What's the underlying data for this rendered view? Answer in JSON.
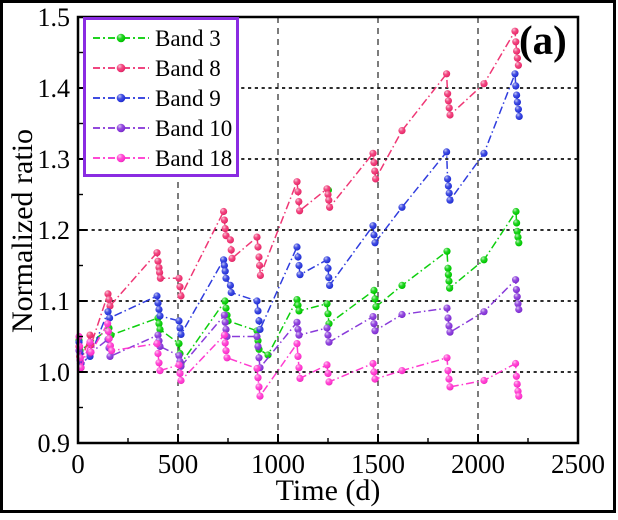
{
  "figure": {
    "panel_label": "(a)",
    "frame_color": "#000000",
    "legend_border_color": "#8A2BE2",
    "x_axis": {
      "label": "Time (d)",
      "ticks": [
        0,
        500,
        1000,
        1500,
        2000,
        2500
      ],
      "minor_ticks": [
        250,
        750,
        1250,
        1750,
        2250
      ]
    },
    "y_axis": {
      "label": "Normalized ratio",
      "ticks": [
        0.9,
        1.0,
        1.1,
        1.2,
        1.3,
        1.4,
        1.5
      ],
      "minor_ticks": [
        0.95,
        1.05,
        1.15,
        1.25,
        1.35,
        1.45
      ]
    },
    "gridlines": {
      "horizontal": [
        1.0,
        1.1,
        1.2,
        1.3,
        1.4
      ],
      "vertical": [
        500,
        1000,
        1500,
        2000
      ]
    }
  },
  "chart_data": {
    "type": "scatter",
    "title": "",
    "xlabel": "Time (d)",
    "ylabel": "Normalized ratio",
    "xlim": [
      0,
      2500
    ],
    "ylim": [
      0.9,
      1.5
    ],
    "grid": "dashed-black-at-major-lines",
    "legend_position": "upper-left",
    "series": [
      {
        "name": "Band 3",
        "color": "#00CC00",
        "points": [
          [
            5,
            1.045
          ],
          [
            10,
            1.03
          ],
          [
            60,
            1.04
          ],
          [
            155,
            1.062
          ],
          [
            165,
            1.052
          ],
          [
            400,
            1.076
          ],
          [
            405,
            1.068
          ],
          [
            410,
            1.06
          ],
          [
            505,
            1.04
          ],
          [
            510,
            1.026
          ],
          [
            515,
            1.012
          ],
          [
            735,
            1.1
          ],
          [
            740,
            1.09
          ],
          [
            745,
            1.08
          ],
          [
            750,
            1.072
          ],
          [
            895,
            1.058
          ],
          [
            900,
            1.044
          ],
          [
            905,
            1.032
          ],
          [
            950,
            1.024
          ],
          [
            1095,
            1.102
          ],
          [
            1100,
            1.094
          ],
          [
            1105,
            1.086
          ],
          [
            1245,
            1.096
          ],
          [
            1250,
            1.082
          ],
          [
            1255,
            1.068
          ],
          [
            1480,
            1.115
          ],
          [
            1485,
            1.103
          ],
          [
            1490,
            1.092
          ],
          [
            1620,
            1.122
          ],
          [
            1845,
            1.17
          ],
          [
            1850,
            1.146
          ],
          [
            1852,
            1.137
          ],
          [
            1855,
            1.128
          ],
          [
            1858,
            1.118
          ],
          [
            2030,
            1.158
          ],
          [
            2190,
            1.226
          ],
          [
            2193,
            1.21
          ],
          [
            2196,
            1.198
          ],
          [
            2200,
            1.19
          ],
          [
            2204,
            1.182
          ]
        ],
        "outliers": [
          [
            1252,
            1.256
          ]
        ]
      },
      {
        "name": "Band 8",
        "color": "#EE2C6E",
        "points": [
          [
            5,
            1.036
          ],
          [
            8,
            1.022
          ],
          [
            12,
            1.012
          ],
          [
            60,
            1.052
          ],
          [
            65,
            1.038
          ],
          [
            150,
            1.11
          ],
          [
            155,
            1.102
          ],
          [
            160,
            1.093
          ],
          [
            395,
            1.168
          ],
          [
            400,
            1.156
          ],
          [
            405,
            1.147
          ],
          [
            408,
            1.14
          ],
          [
            412,
            1.132
          ],
          [
            505,
            1.132
          ],
          [
            510,
            1.12
          ],
          [
            515,
            1.107
          ],
          [
            728,
            1.226
          ],
          [
            732,
            1.214
          ],
          [
            736,
            1.202
          ],
          [
            740,
            1.192
          ],
          [
            762,
            1.186
          ],
          [
            766,
            1.172
          ],
          [
            770,
            1.16
          ],
          [
            895,
            1.19
          ],
          [
            900,
            1.176
          ],
          [
            905,
            1.162
          ],
          [
            908,
            1.15
          ],
          [
            912,
            1.136
          ],
          [
            1095,
            1.268
          ],
          [
            1100,
            1.254
          ],
          [
            1104,
            1.24
          ],
          [
            1108,
            1.227
          ],
          [
            1245,
            1.258
          ],
          [
            1250,
            1.25
          ],
          [
            1254,
            1.242
          ],
          [
            1258,
            1.232
          ],
          [
            1475,
            1.308
          ],
          [
            1480,
            1.295
          ],
          [
            1484,
            1.283
          ],
          [
            1488,
            1.272
          ],
          [
            1620,
            1.34
          ],
          [
            1843,
            1.42
          ],
          [
            1848,
            1.392
          ],
          [
            1852,
            1.382
          ],
          [
            1856,
            1.372
          ],
          [
            1860,
            1.362
          ],
          [
            2030,
            1.406
          ],
          [
            2185,
            1.48
          ],
          [
            2189,
            1.465
          ],
          [
            2193,
            1.452
          ],
          [
            2197,
            1.442
          ],
          [
            2202,
            1.432
          ]
        ],
        "outliers": []
      },
      {
        "name": "Band 9",
        "color": "#2533DC",
        "points": [
          [
            5,
            1.042
          ],
          [
            10,
            1.026
          ],
          [
            15,
            1.012
          ],
          [
            60,
            1.022
          ],
          [
            150,
            1.085
          ],
          [
            158,
            1.076
          ],
          [
            395,
            1.107
          ],
          [
            400,
            1.097
          ],
          [
            405,
            1.088
          ],
          [
            410,
            1.079
          ],
          [
            505,
            1.072
          ],
          [
            510,
            1.062
          ],
          [
            515,
            1.053
          ],
          [
            728,
            1.158
          ],
          [
            732,
            1.15
          ],
          [
            736,
            1.142
          ],
          [
            740,
            1.132
          ],
          [
            762,
            1.122
          ],
          [
            766,
            1.112
          ],
          [
            895,
            1.1
          ],
          [
            900,
            1.086
          ],
          [
            905,
            1.072
          ],
          [
            910,
            1.06
          ],
          [
            1095,
            1.176
          ],
          [
            1100,
            1.162
          ],
          [
            1105,
            1.15
          ],
          [
            1110,
            1.137
          ],
          [
            1245,
            1.158
          ],
          [
            1250,
            1.146
          ],
          [
            1254,
            1.133
          ],
          [
            1258,
            1.122
          ],
          [
            1475,
            1.206
          ],
          [
            1480,
            1.193
          ],
          [
            1485,
            1.182
          ],
          [
            1620,
            1.232
          ],
          [
            1843,
            1.31
          ],
          [
            1848,
            1.272
          ],
          [
            1852,
            1.262
          ],
          [
            1856,
            1.252
          ],
          [
            1860,
            1.242
          ],
          [
            2030,
            1.308
          ],
          [
            2185,
            1.42
          ],
          [
            2189,
            1.403
          ],
          [
            2193,
            1.39
          ],
          [
            2197,
            1.38
          ],
          [
            2202,
            1.37
          ],
          [
            2206,
            1.36
          ]
        ],
        "outliers": []
      },
      {
        "name": "Band 10",
        "color": "#8330D8",
        "points": [
          [
            5,
            1.03
          ],
          [
            10,
            1.017
          ],
          [
            15,
            1.006
          ],
          [
            60,
            1.026
          ],
          [
            150,
            1.046
          ],
          [
            155,
            1.034
          ],
          [
            160,
            1.022
          ],
          [
            400,
            1.052
          ],
          [
            405,
            1.044
          ],
          [
            410,
            1.036
          ],
          [
            505,
            1.023
          ],
          [
            510,
            1.015
          ],
          [
            515,
            1.008
          ],
          [
            732,
            1.08
          ],
          [
            736,
            1.07
          ],
          [
            740,
            1.06
          ],
          [
            745,
            1.05
          ],
          [
            895,
            1.05
          ],
          [
            900,
            1.036
          ],
          [
            905,
            1.02
          ],
          [
            910,
            1.006
          ],
          [
            1095,
            1.07
          ],
          [
            1100,
            1.06
          ],
          [
            1105,
            1.052
          ],
          [
            1245,
            1.062
          ],
          [
            1250,
            1.052
          ],
          [
            1255,
            1.042
          ],
          [
            1475,
            1.078
          ],
          [
            1480,
            1.068
          ],
          [
            1485,
            1.058
          ],
          [
            1620,
            1.081
          ],
          [
            1845,
            1.09
          ],
          [
            1850,
            1.076
          ],
          [
            1855,
            1.065
          ],
          [
            1860,
            1.056
          ],
          [
            2030,
            1.085
          ],
          [
            2188,
            1.13
          ],
          [
            2192,
            1.116
          ],
          [
            2196,
            1.106
          ],
          [
            2200,
            1.096
          ],
          [
            2204,
            1.088
          ]
        ],
        "outliers": []
      },
      {
        "name": "Band 18",
        "color": "#FF30CE",
        "points": [
          [
            5,
            1.05
          ],
          [
            8,
            1.036
          ],
          [
            12,
            1.02
          ],
          [
            15,
            1.006
          ],
          [
            60,
            1.042
          ],
          [
            65,
            1.028
          ],
          [
            148,
            1.068
          ],
          [
            152,
            1.057
          ],
          [
            156,
            1.047
          ],
          [
            162,
            1.037
          ],
          [
            168,
            1.03
          ],
          [
            395,
            1.04
          ],
          [
            400,
            1.026
          ],
          [
            405,
            1.013
          ],
          [
            410,
            1.002
          ],
          [
            505,
            1.01
          ],
          [
            510,
            0.998
          ],
          [
            515,
            0.988
          ],
          [
            732,
            1.052
          ],
          [
            736,
            1.041
          ],
          [
            740,
            1.03
          ],
          [
            745,
            1.02
          ],
          [
            895,
            1.005
          ],
          [
            900,
            0.992
          ],
          [
            905,
            0.979
          ],
          [
            910,
            0.966
          ],
          [
            1095,
            1.04
          ],
          [
            1100,
            1.022
          ],
          [
            1105,
            1.006
          ],
          [
            1110,
            0.991
          ],
          [
            1245,
            1.01
          ],
          [
            1250,
            0.998
          ],
          [
            1255,
            0.986
          ],
          [
            1475,
            1.012
          ],
          [
            1480,
            1.0
          ],
          [
            1485,
            0.99
          ],
          [
            1620,
            1.002
          ],
          [
            1845,
            1.02
          ],
          [
            1850,
            1.002
          ],
          [
            1855,
            0.99
          ],
          [
            1860,
            0.979
          ],
          [
            2030,
            0.988
          ],
          [
            2188,
            1.012
          ],
          [
            2192,
            0.994
          ],
          [
            2196,
            0.983
          ],
          [
            2200,
            0.973
          ],
          [
            2204,
            0.966
          ]
        ],
        "outliers": []
      }
    ]
  }
}
